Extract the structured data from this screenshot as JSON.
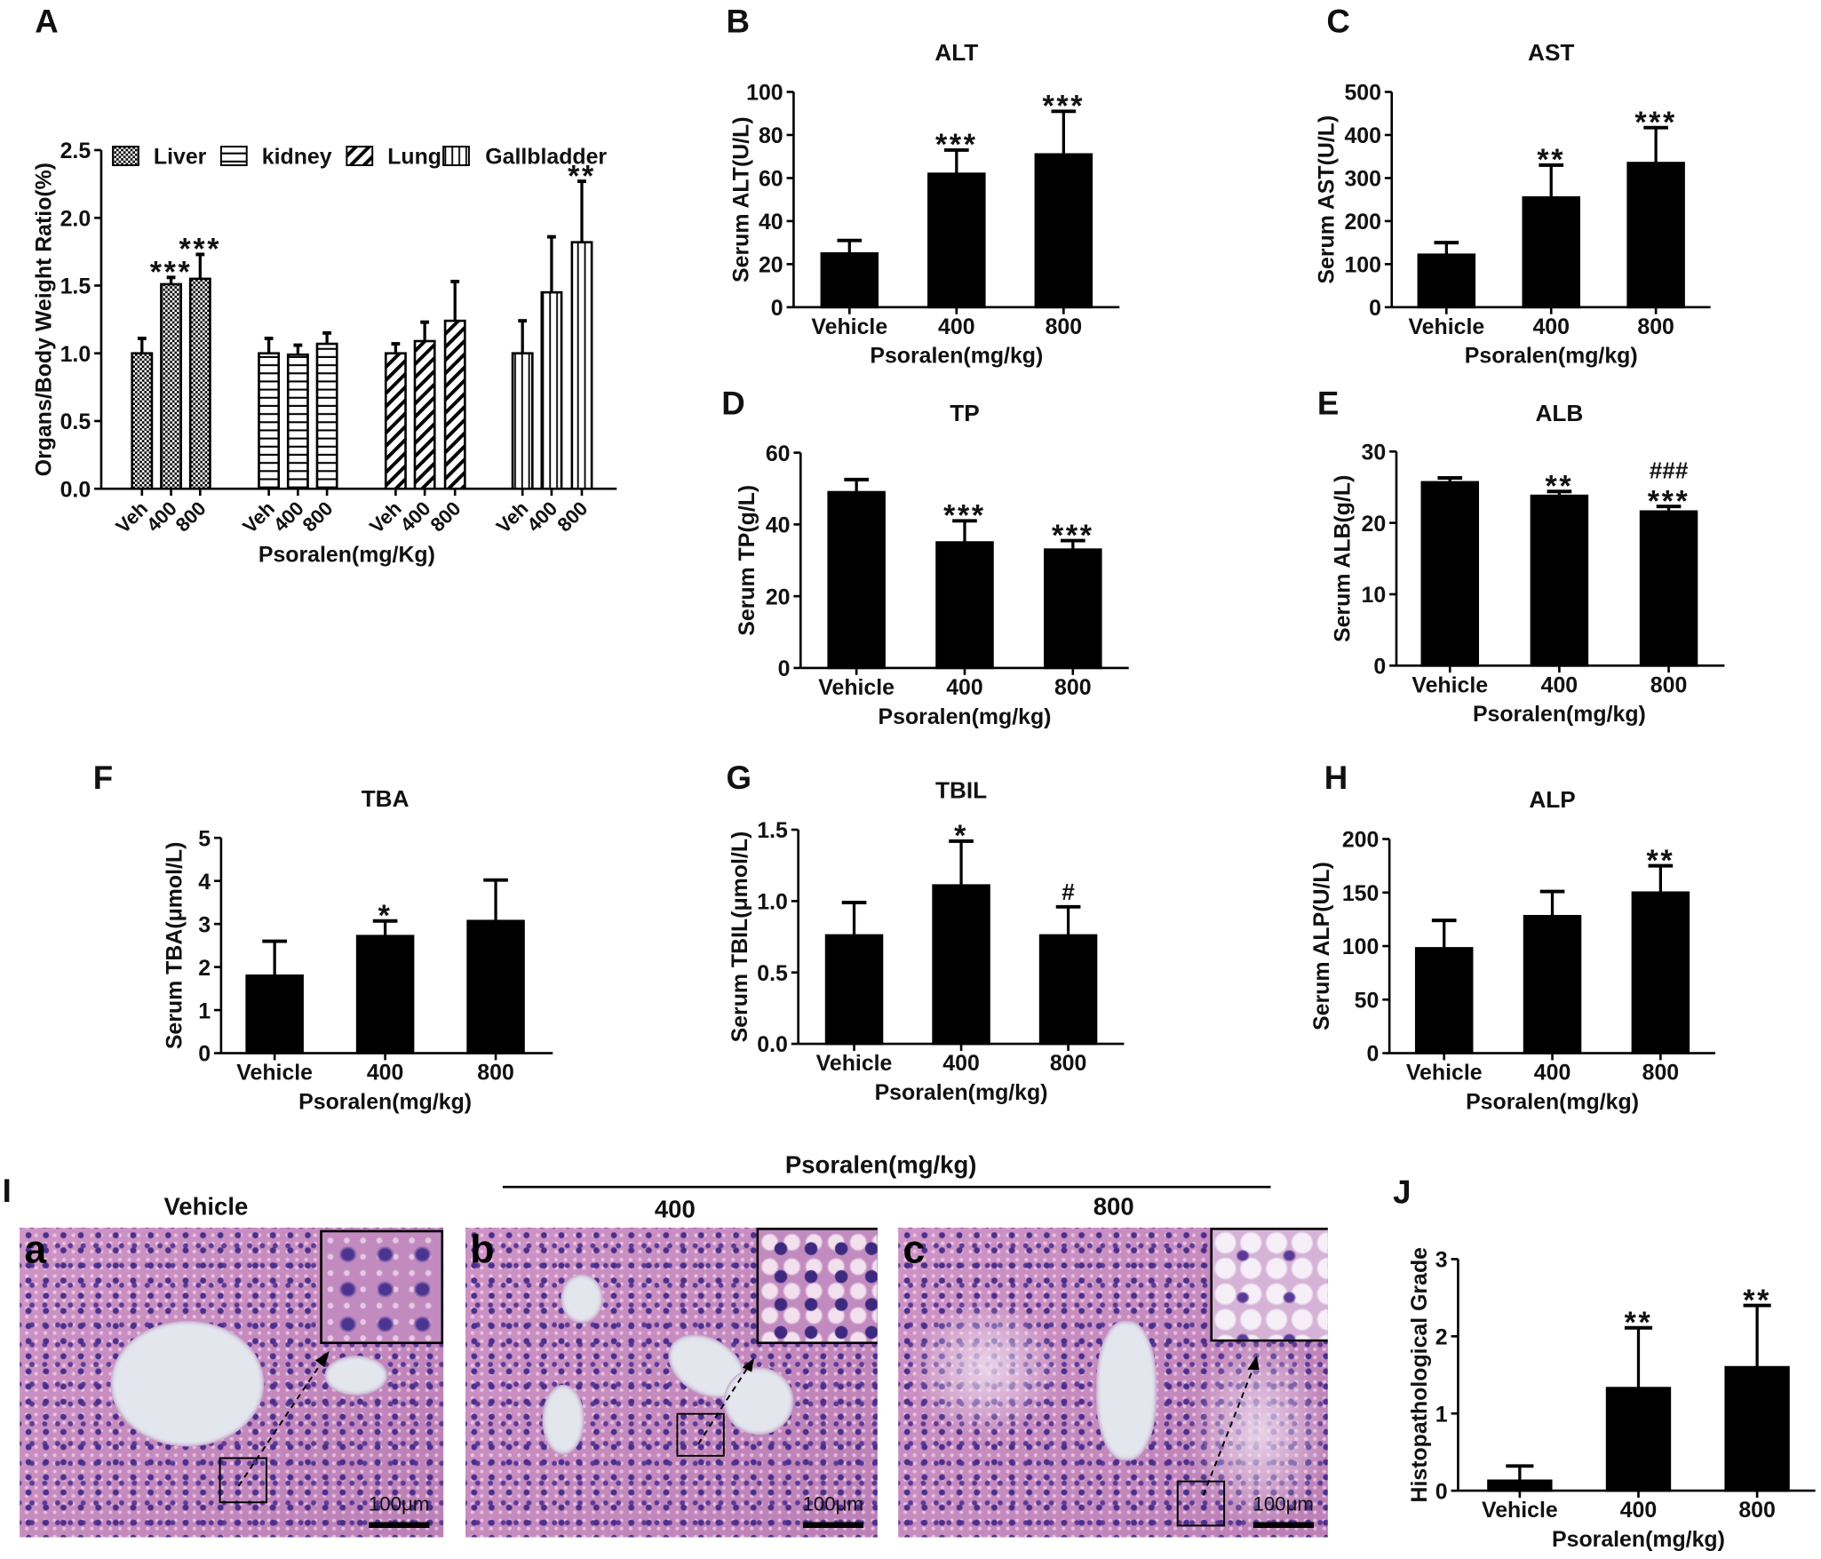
{
  "chart_data": [
    {
      "id": "A",
      "panel_label": "A",
      "type": "bar",
      "title": "",
      "ylabel": "Organs/Body Weight Ratio(%)",
      "xlabel": "Psoralen(mg/Kg)",
      "ylim": [
        0,
        2.5
      ],
      "yticks": [
        0,
        0.5,
        1,
        1.5,
        2,
        2.5
      ],
      "ytick_labels": [
        "0.0",
        "0.5",
        "1.0",
        "1.5",
        "2.0",
        "2.5"
      ],
      "categories": [
        "Veh",
        "400",
        "800"
      ],
      "legend_position": "top",
      "series": [
        {
          "name": "Liver",
          "pattern": "crosshatch",
          "values": [
            1.0,
            1.51,
            1.55
          ],
          "errors": [
            0.11,
            0.05,
            0.18
          ],
          "significance": [
            "",
            "***",
            "***"
          ]
        },
        {
          "name": "kidney",
          "pattern": "horizontal",
          "values": [
            1.0,
            0.99,
            1.07
          ],
          "errors": [
            0.11,
            0.07,
            0.08
          ],
          "significance": [
            "",
            "",
            ""
          ]
        },
        {
          "name": "Lung",
          "pattern": "diagonal",
          "values": [
            1.0,
            1.09,
            1.24
          ],
          "errors": [
            0.07,
            0.14,
            0.29
          ],
          "significance": [
            "",
            "",
            ""
          ]
        },
        {
          "name": "Gallbladder",
          "pattern": "vertical",
          "values": [
            1.0,
            1.45,
            1.82
          ],
          "errors": [
            0.24,
            0.41,
            0.45
          ],
          "significance": [
            "",
            "",
            "**"
          ]
        }
      ]
    },
    {
      "id": "B",
      "panel_label": "B",
      "type": "bar",
      "title": "ALT",
      "ylabel": "Serum ALT(U/L)",
      "xlabel": "Psoralen(mg/kg)",
      "ylim": [
        0,
        100
      ],
      "yticks": [
        0,
        20,
        40,
        60,
        80,
        100
      ],
      "ytick_labels": [
        "0",
        "20",
        "40",
        "60",
        "80",
        "100"
      ],
      "categories": [
        "Vehicle",
        "400",
        "800"
      ],
      "values": [
        25,
        62,
        71
      ],
      "errors": [
        6,
        11,
        20
      ],
      "significance": [
        "",
        "***",
        "***"
      ],
      "color": "#000000"
    },
    {
      "id": "C",
      "panel_label": "C",
      "type": "bar",
      "title": "AST",
      "ylabel": "Serum AST(U/L)",
      "xlabel": "Psoralen(mg/kg)",
      "ylim": [
        0,
        500
      ],
      "yticks": [
        0,
        100,
        200,
        300,
        400,
        500
      ],
      "ytick_labels": [
        "0",
        "100",
        "200",
        "300",
        "400",
        "500"
      ],
      "categories": [
        "Vehicle",
        "400",
        "800"
      ],
      "values": [
        122,
        255,
        335
      ],
      "errors": [
        28,
        75,
        82
      ],
      "significance": [
        "",
        "**",
        "***"
      ],
      "color": "#000000"
    },
    {
      "id": "D",
      "panel_label": "D",
      "type": "bar",
      "title": "TP",
      "ylabel": "Serum TP(g/L)",
      "xlabel": "Psoralen(mg/kg)",
      "ylim": [
        0,
        60
      ],
      "yticks": [
        0,
        20,
        40,
        60
      ],
      "ytick_labels": [
        "0",
        "20",
        "40",
        "60"
      ],
      "categories": [
        "Vehicle",
        "400",
        "800"
      ],
      "values": [
        49,
        35,
        33
      ],
      "errors": [
        3.5,
        6,
        2.5
      ],
      "significance": [
        "",
        "***",
        "***"
      ],
      "color": "#000000"
    },
    {
      "id": "E",
      "panel_label": "E",
      "type": "bar",
      "title": "ALB",
      "ylabel": "Serum ALB(g/L)",
      "xlabel": "Psoralen(mg/kg)",
      "ylim": [
        0,
        30
      ],
      "yticks": [
        0,
        10,
        20,
        30
      ],
      "ytick_labels": [
        "0",
        "10",
        "20",
        "30"
      ],
      "categories": [
        "Vehicle",
        "400",
        "800"
      ],
      "values": [
        25.7,
        23.8,
        21.6
      ],
      "errors": [
        0.6,
        0.6,
        0.7
      ],
      "significance": [
        "",
        "**",
        "###\n***"
      ],
      "color": "#000000"
    },
    {
      "id": "F",
      "panel_label": "F",
      "type": "bar",
      "title": "TBA",
      "ylabel": "Serum TBA(μmol/L)",
      "xlabel": "Psoralen(mg/kg)",
      "ylim": [
        0,
        5
      ],
      "yticks": [
        0,
        1,
        2,
        3,
        4,
        5
      ],
      "ytick_labels": [
        "0",
        "1",
        "2",
        "3",
        "4",
        "5"
      ],
      "categories": [
        "Vehicle",
        "400",
        "800"
      ],
      "values": [
        1.8,
        2.72,
        3.07
      ],
      "errors": [
        0.8,
        0.35,
        0.95
      ],
      "significance": [
        "",
        "*",
        ""
      ],
      "color": "#000000"
    },
    {
      "id": "G",
      "panel_label": "G",
      "type": "bar",
      "title": "TBIL",
      "ylabel": "Serum TBIL(μmol/L)",
      "xlabel": "Psoralen(mg/kg)",
      "ylim": [
        0,
        1.5
      ],
      "yticks": [
        0,
        0.5,
        1,
        1.5
      ],
      "ytick_labels": [
        "0.0",
        "0.5",
        "1.0",
        "1.5"
      ],
      "categories": [
        "Vehicle",
        "400",
        "800"
      ],
      "values": [
        0.76,
        1.11,
        0.76
      ],
      "errors": [
        0.23,
        0.31,
        0.2
      ],
      "significance": [
        "",
        "*",
        "#"
      ],
      "color": "#000000"
    },
    {
      "id": "H",
      "panel_label": "H",
      "type": "bar",
      "title": "ALP",
      "ylabel": "Serum ALP(U/L)",
      "xlabel": "Psoralen(mg/kg)",
      "ylim": [
        0,
        200
      ],
      "yticks": [
        0,
        50,
        100,
        150,
        200
      ],
      "ytick_labels": [
        "0",
        "50",
        "100",
        "150",
        "200"
      ],
      "categories": [
        "Vehicle",
        "400",
        "800"
      ],
      "values": [
        98,
        128,
        150
      ],
      "errors": [
        26,
        23,
        25
      ],
      "significance": [
        "",
        "",
        "**"
      ],
      "color": "#000000"
    },
    {
      "id": "J",
      "panel_label": "J",
      "type": "bar",
      "title": "",
      "ylabel": "Histopathological  Grade",
      "xlabel": "Psoralen(mg/kg)",
      "ylim": [
        0,
        3
      ],
      "yticks": [
        0,
        1,
        2,
        3
      ],
      "ytick_labels": [
        "0",
        "1",
        "2",
        "3"
      ],
      "categories": [
        "Vehicle",
        "400",
        "800"
      ],
      "values": [
        0.13,
        1.33,
        1.6
      ],
      "errors": [
        0.19,
        0.78,
        0.8
      ],
      "significance": [
        "",
        "**",
        "**"
      ],
      "color": "#000000"
    }
  ],
  "histology": {
    "panel_label": "I",
    "group_label": "Psoralen(mg/kg)",
    "images": [
      {
        "letter": "a",
        "label": "Vehicle",
        "scale_bar": "100μm"
      },
      {
        "letter": "b",
        "label": "400",
        "scale_bar": "100μm"
      },
      {
        "letter": "c",
        "label": "800",
        "scale_bar": "100μm"
      }
    ]
  }
}
